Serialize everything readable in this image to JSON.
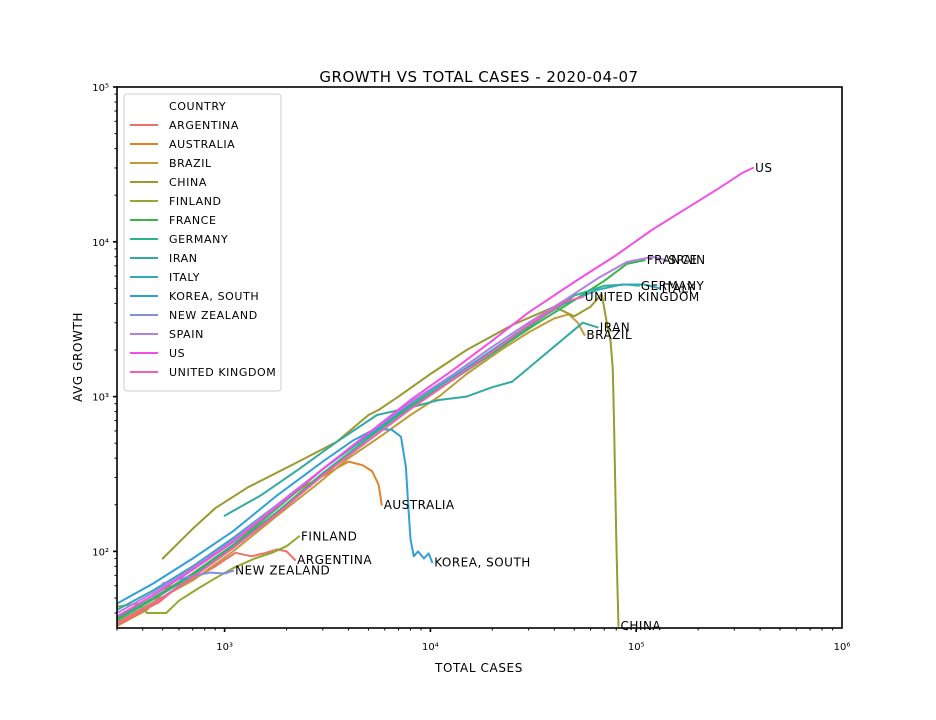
{
  "chart_data": {
    "type": "line",
    "title": "GROWTH VS TOTAL CASES - 2020-04-07",
    "xlabel": "TOTAL CASES",
    "ylabel": "AVG GROWTH",
    "xscale": "log",
    "yscale": "log",
    "xlim": [
      300,
      1000000
    ],
    "ylim": [
      32,
      100000
    ],
    "xticks": [
      {
        "value": 1000,
        "label": "10³"
      },
      {
        "value": 10000,
        "label": "10⁴"
      },
      {
        "value": 100000,
        "label": "10⁵"
      },
      {
        "value": 1000000,
        "label": "10⁶"
      }
    ],
    "yticks": [
      {
        "value": 100,
        "label": "10²"
      },
      {
        "value": 1000,
        "label": "10³"
      },
      {
        "value": 10000,
        "label": "10⁴"
      },
      {
        "value": 100000,
        "label": "10⁵"
      }
    ],
    "grid": false,
    "legend": {
      "title": "COUNTRY",
      "position": "top-left"
    },
    "series": [
      {
        "name": "ARGENTINA",
        "color": "#f0706a",
        "label": "ARGENTINA",
        "points": [
          [
            300,
            33
          ],
          [
            380,
            40
          ],
          [
            480,
            47
          ],
          [
            600,
            60
          ],
          [
            760,
            70
          ],
          [
            900,
            80
          ],
          [
            1000,
            88
          ],
          [
            1130,
            98
          ],
          [
            1350,
            93
          ],
          [
            1550,
            97
          ],
          [
            1800,
            103
          ],
          [
            2000,
            100
          ],
          [
            2200,
            88
          ]
        ]
      },
      {
        "name": "AUSTRALIA",
        "color": "#e0832e",
        "label": "AUSTRALIA",
        "points": [
          [
            300,
            33
          ],
          [
            420,
            42
          ],
          [
            600,
            70
          ],
          [
            1000,
            110
          ],
          [
            1600,
            175
          ],
          [
            2400,
            260
          ],
          [
            3300,
            330
          ],
          [
            4000,
            380
          ],
          [
            4700,
            360
          ],
          [
            5200,
            330
          ],
          [
            5600,
            270
          ],
          [
            5800,
            200
          ]
        ]
      },
      {
        "name": "BRAZIL",
        "color": "#c09b36",
        "label": "BRAZIL",
        "points": [
          [
            300,
            35
          ],
          [
            450,
            47
          ],
          [
            700,
            65
          ],
          [
            1100,
            100
          ],
          [
            1800,
            170
          ],
          [
            2800,
            270
          ],
          [
            4000,
            400
          ],
          [
            5800,
            560
          ],
          [
            8000,
            760
          ],
          [
            11000,
            1000
          ],
          [
            15000,
            1400
          ],
          [
            22000,
            2000
          ],
          [
            30000,
            2600
          ],
          [
            40000,
            3200
          ],
          [
            47000,
            3400
          ],
          [
            52000,
            3000
          ],
          [
            56000,
            2500
          ]
        ]
      },
      {
        "name": "CHINA",
        "color": "#9a9a2f",
        "label": "CHINA",
        "points": [
          [
            500,
            90
          ],
          [
            700,
            140
          ],
          [
            900,
            190
          ],
          [
            1300,
            260
          ],
          [
            2200,
            370
          ],
          [
            3500,
            510
          ],
          [
            5000,
            760
          ],
          [
            5600,
            820
          ],
          [
            7000,
            1000
          ],
          [
            10000,
            1400
          ],
          [
            15000,
            2000
          ],
          [
            25000,
            2900
          ],
          [
            40000,
            3800
          ],
          [
            50000,
            3300
          ],
          [
            60000,
            3800
          ],
          [
            68000,
            4600
          ],
          [
            72000,
            3000
          ],
          [
            75000,
            2300
          ],
          [
            77000,
            1500
          ],
          [
            78000,
            700
          ],
          [
            79000,
            300
          ],
          [
            80000,
            120
          ],
          [
            81000,
            60
          ],
          [
            82000,
            33
          ]
        ]
      },
      {
        "name": "FINLAND",
        "color": "#8faa2e",
        "label": "FINLAND",
        "points": [
          [
            300,
            44
          ],
          [
            380,
            46
          ],
          [
            420,
            40
          ],
          [
            520,
            40
          ],
          [
            600,
            48
          ],
          [
            750,
            58
          ],
          [
            900,
            67
          ],
          [
            1100,
            78
          ],
          [
            1400,
            90
          ],
          [
            1700,
            98
          ],
          [
            2000,
            108
          ],
          [
            2300,
            125
          ]
        ]
      },
      {
        "name": "FRANCE",
        "color": "#39b54a",
        "label": "FRANCE",
        "points": [
          [
            300,
            37
          ],
          [
            450,
            50
          ],
          [
            700,
            72
          ],
          [
            1100,
            110
          ],
          [
            1800,
            190
          ],
          [
            3000,
            340
          ],
          [
            5000,
            560
          ],
          [
            8000,
            870
          ],
          [
            13000,
            1300
          ],
          [
            20000,
            1900
          ],
          [
            32000,
            2900
          ],
          [
            50000,
            4200
          ],
          [
            70000,
            5600
          ],
          [
            90000,
            7200
          ],
          [
            110000,
            7600
          ]
        ]
      },
      {
        "name": "GERMANY",
        "color": "#2fb28a",
        "label": "GERMANY",
        "points": [
          [
            300,
            36
          ],
          [
            450,
            49
          ],
          [
            700,
            70
          ],
          [
            1100,
            108
          ],
          [
            1800,
            180
          ],
          [
            3000,
            320
          ],
          [
            5000,
            540
          ],
          [
            8000,
            860
          ],
          [
            13000,
            1300
          ],
          [
            20000,
            1900
          ],
          [
            32000,
            3000
          ],
          [
            50000,
            4500
          ],
          [
            70000,
            5200
          ],
          [
            90000,
            5300
          ],
          [
            103000,
            5200
          ]
        ]
      },
      {
        "name": "IRAN",
        "color": "#33aaa0",
        "label": "IRAN",
        "points": [
          [
            1000,
            170
          ],
          [
            1500,
            230
          ],
          [
            2300,
            340
          ],
          [
            3500,
            510
          ],
          [
            5500,
            760
          ],
          [
            8000,
            850
          ],
          [
            11000,
            950
          ],
          [
            15000,
            1000
          ],
          [
            20000,
            1150
          ],
          [
            25000,
            1250
          ],
          [
            33000,
            1700
          ],
          [
            45000,
            2400
          ],
          [
            55000,
            3000
          ],
          [
            65000,
            2800
          ]
        ]
      },
      {
        "name": "ITALY",
        "color": "#30aab8",
        "label": "ITALY",
        "points": [
          [
            300,
            42
          ],
          [
            450,
            56
          ],
          [
            700,
            80
          ],
          [
            1100,
            122
          ],
          [
            1800,
            200
          ],
          [
            3000,
            340
          ],
          [
            5000,
            560
          ],
          [
            8000,
            900
          ],
          [
            13000,
            1350
          ],
          [
            20000,
            2000
          ],
          [
            30000,
            2900
          ],
          [
            45000,
            4000
          ],
          [
            65000,
            4900
          ],
          [
            85000,
            5300
          ],
          [
            110000,
            5300
          ],
          [
            130000,
            5000
          ]
        ]
      },
      {
        "name": "KOREA, SOUTH",
        "color": "#31a0d8",
        "label": "KOREA, SOUTH",
        "points": [
          [
            300,
            46
          ],
          [
            450,
            62
          ],
          [
            700,
            90
          ],
          [
            1100,
            135
          ],
          [
            1800,
            230
          ],
          [
            3000,
            380
          ],
          [
            4200,
            520
          ],
          [
            5400,
            620
          ],
          [
            6500,
            610
          ],
          [
            7200,
            550
          ],
          [
            7600,
            350
          ],
          [
            7800,
            200
          ],
          [
            8000,
            120
          ],
          [
            8300,
            93
          ],
          [
            8700,
            100
          ],
          [
            9300,
            90
          ],
          [
            9800,
            97
          ],
          [
            10200,
            85
          ]
        ]
      },
      {
        "name": "NEW ZEALAND",
        "color": "#7f8fe8",
        "label": "NEW ZEALAND",
        "points": [
          [
            500,
            62
          ],
          [
            650,
            68
          ],
          [
            850,
            73
          ],
          [
            1000,
            72
          ],
          [
            1100,
            75
          ]
        ]
      },
      {
        "name": "SPAIN",
        "color": "#b27fe6",
        "label": "SPAIN",
        "points": [
          [
            300,
            40
          ],
          [
            450,
            54
          ],
          [
            700,
            78
          ],
          [
            1100,
            118
          ],
          [
            1800,
            200
          ],
          [
            3000,
            340
          ],
          [
            5000,
            580
          ],
          [
            8000,
            920
          ],
          [
            13000,
            1400
          ],
          [
            20000,
            2100
          ],
          [
            30000,
            3000
          ],
          [
            45000,
            4200
          ],
          [
            65000,
            5800
          ],
          [
            90000,
            7400
          ],
          [
            120000,
            8000
          ],
          [
            140000,
            7600
          ]
        ]
      },
      {
        "name": "US",
        "color": "#f34fe6",
        "label": "US",
        "points": [
          [
            300,
            38
          ],
          [
            450,
            52
          ],
          [
            700,
            76
          ],
          [
            1100,
            115
          ],
          [
            1800,
            195
          ],
          [
            3000,
            340
          ],
          [
            5000,
            580
          ],
          [
            8000,
            950
          ],
          [
            13000,
            1500
          ],
          [
            20000,
            2300
          ],
          [
            30000,
            3500
          ],
          [
            50000,
            5500
          ],
          [
            80000,
            8200
          ],
          [
            120000,
            12000
          ],
          [
            170000,
            16000
          ],
          [
            250000,
            22000
          ],
          [
            330000,
            28000
          ],
          [
            370000,
            30000
          ]
        ]
      },
      {
        "name": "UNITED KINGDOM",
        "color": "#f55fac",
        "label": "UNITED KINGDOM",
        "points": [
          [
            300,
            34
          ],
          [
            450,
            46
          ],
          [
            700,
            68
          ],
          [
            1100,
            105
          ],
          [
            1800,
            175
          ],
          [
            3000,
            310
          ],
          [
            5000,
            520
          ],
          [
            8000,
            830
          ],
          [
            13000,
            1300
          ],
          [
            20000,
            1950
          ],
          [
            30000,
            2900
          ],
          [
            45000,
            4100
          ],
          [
            55000,
            4400
          ]
        ]
      }
    ]
  }
}
